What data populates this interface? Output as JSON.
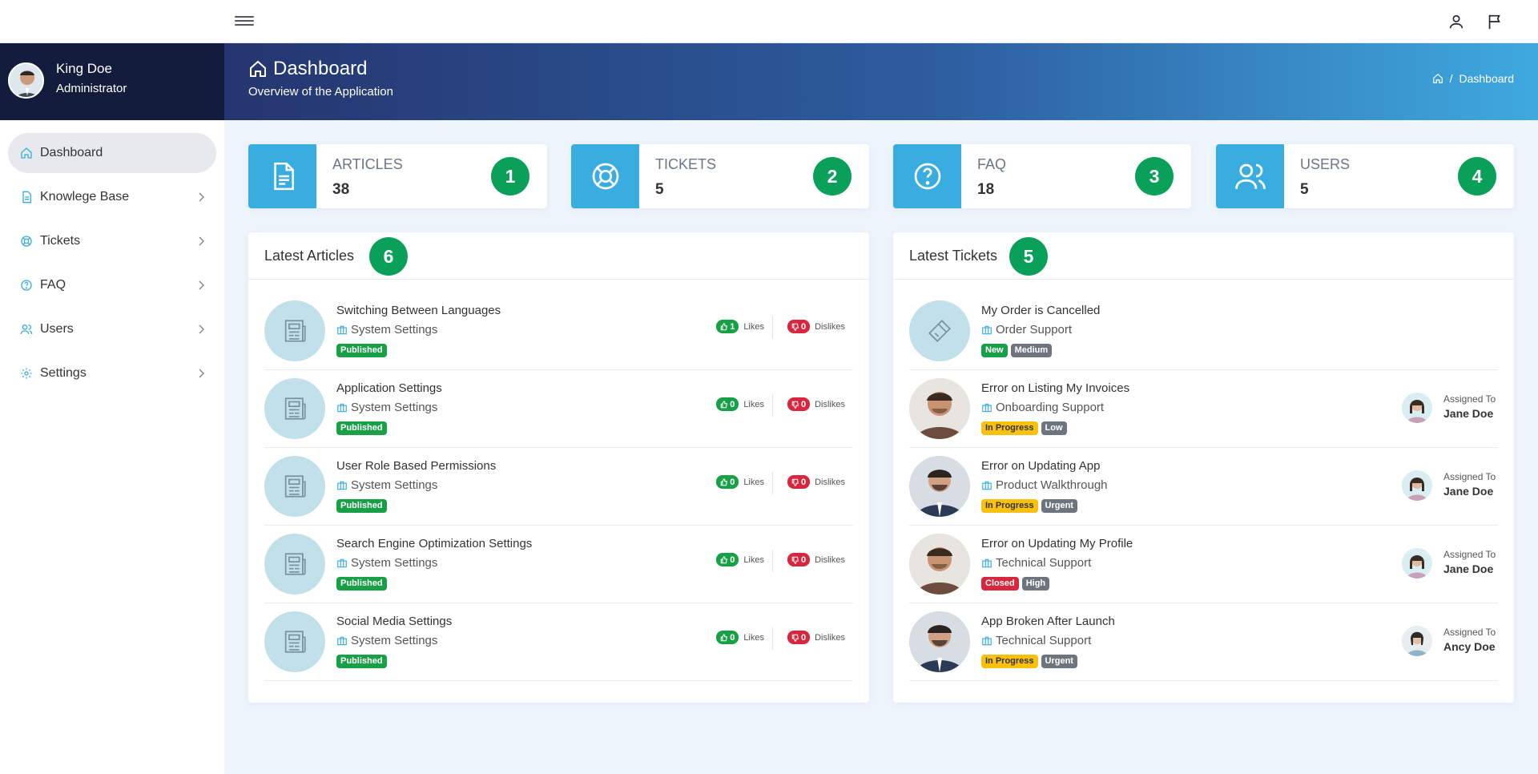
{
  "header": {
    "menu_icon": "hamburger-icon",
    "user_icon": "user-icon",
    "flag_icon": "flag-icon"
  },
  "profile": {
    "name": "King Doe",
    "role": "Administrator"
  },
  "sidebar": {
    "items": [
      {
        "label": "Dashboard",
        "icon": "home-icon",
        "active": true
      },
      {
        "label": "Knowlege Base",
        "icon": "document-icon"
      },
      {
        "label": "Tickets",
        "icon": "lifebuoy-icon"
      },
      {
        "label": "FAQ",
        "icon": "question-icon"
      },
      {
        "label": "Users",
        "icon": "users-icon"
      },
      {
        "label": "Settings",
        "icon": "gear-icon"
      }
    ]
  },
  "hero": {
    "title": "Dashboard",
    "subtitle": "Overview of the Application",
    "breadcrumb_sep": "/",
    "breadcrumb_current": "Dashboard"
  },
  "stats": [
    {
      "label": "ARTICLES",
      "value": "38",
      "badge": "1"
    },
    {
      "label": "TICKETS",
      "value": "5",
      "badge": "2"
    },
    {
      "label": "FAQ",
      "value": "18",
      "badge": "3"
    },
    {
      "label": "USERS",
      "value": "5",
      "badge": "4"
    }
  ],
  "articles": {
    "title": "Latest Articles",
    "badge": "6",
    "likes_label": "Likes",
    "dislikes_label": "Dislikes",
    "items": [
      {
        "title": "Switching Between Languages",
        "category": "System Settings",
        "status": "Published",
        "likes": "1",
        "dislikes": "0"
      },
      {
        "title": "Application Settings",
        "category": "System Settings",
        "status": "Published",
        "likes": "0",
        "dislikes": "0"
      },
      {
        "title": "User Role Based Permissions",
        "category": "System Settings",
        "status": "Published",
        "likes": "0",
        "dislikes": "0"
      },
      {
        "title": "Search Engine Optimization Settings",
        "category": "System Settings",
        "status": "Published",
        "likes": "0",
        "dislikes": "0"
      },
      {
        "title": "Social Media Settings",
        "category": "System Settings",
        "status": "Published",
        "likes": "0",
        "dislikes": "0"
      }
    ]
  },
  "tickets": {
    "title": "Latest Tickets",
    "badge": "5",
    "assigned_label": "Assigned To",
    "items": [
      {
        "title": "My Order is Cancelled",
        "category": "Order Support",
        "status": "New",
        "status_color": "#18a047",
        "priority": "Medium",
        "assignee": ""
      },
      {
        "title": "Error on Listing My Invoices",
        "category": "Onboarding Support",
        "status": "In Progress",
        "status_color": "#f9c00c",
        "priority": "Low",
        "assignee": "Jane Doe"
      },
      {
        "title": "Error on Updating App",
        "category": "Product Walkthrough",
        "status": "In Progress",
        "status_color": "#f9c00c",
        "priority": "Urgent",
        "assignee": "Jane Doe"
      },
      {
        "title": "Error on Updating My Profile",
        "category": "Technical Support",
        "status": "Closed",
        "status_color": "#d9263f",
        "priority": "High",
        "assignee": "Jane Doe"
      },
      {
        "title": "App Broken After Launch",
        "category": "Technical Support",
        "status": "In Progress",
        "status_color": "#f9c00c",
        "priority": "Urgent",
        "assignee": "Ancy Doe"
      }
    ]
  },
  "colors": {
    "accent": "#3aade0",
    "badge_green": "#0aa05a",
    "sidebar_profile_bg": "#141c3d"
  }
}
